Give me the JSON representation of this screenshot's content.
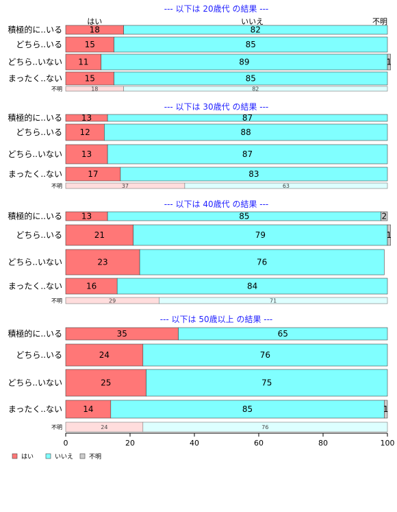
{
  "colors": {
    "yes": "#ff7777",
    "no": "#80ffff",
    "unknown": "#cccccc",
    "yes_light": "#ffdddd",
    "no_light": "#ddffff",
    "title": "#1f1fff"
  },
  "chart_data": {
    "type": "bar",
    "orientation": "horizontal-stacked-100",
    "column_headers": [
      "はい",
      "いいえ",
      "不明"
    ],
    "legend": [
      "はい",
      "いいえ",
      "不明"
    ],
    "x_ticks": [
      "0",
      "20",
      "40",
      "60",
      "80",
      "100"
    ],
    "xlim": [
      0,
      100
    ],
    "panels": [
      {
        "title": "--- 以下は 20歳代 の結果 ---",
        "rows": [
          {
            "label": "積極的に..いる",
            "values": [
              18,
              82,
              0
            ],
            "labels": [
              "18",
              "82",
              ""
            ]
          },
          {
            "label": "どちら..いる",
            "values": [
              15,
              85,
              0
            ],
            "labels": [
              "15",
              "85",
              ""
            ]
          },
          {
            "label": "どちら..いない",
            "values": [
              11,
              89,
              1
            ],
            "labels": [
              "11",
              "89",
              "1"
            ]
          },
          {
            "label": "まったく..ない",
            "values": [
              15,
              85,
              0
            ],
            "labels": [
              "15",
              "85",
              ""
            ]
          }
        ],
        "unknown_row": {
          "label": "不明",
          "values": [
            18,
            82
          ],
          "labels": [
            "18",
            "82"
          ]
        }
      },
      {
        "title": "--- 以下は 30歳代 の結果 ---",
        "rows": [
          {
            "label": "積極的に..いる",
            "values": [
              13,
              87,
              0
            ],
            "labels": [
              "13",
              "87",
              ""
            ]
          },
          {
            "label": "どちら..いる",
            "values": [
              12,
              88,
              0
            ],
            "labels": [
              "12",
              "88",
              ""
            ]
          },
          {
            "label": "どちら..いない",
            "values": [
              13,
              87,
              0
            ],
            "labels": [
              "13",
              "87",
              ""
            ]
          },
          {
            "label": "まったく..ない",
            "values": [
              17,
              83,
              0
            ],
            "labels": [
              "17",
              "83",
              ""
            ]
          }
        ],
        "unknown_row": {
          "label": "不明",
          "values": [
            37,
            63
          ],
          "labels": [
            "37",
            "63"
          ]
        }
      },
      {
        "title": "--- 以下は 40歳代 の結果 ---",
        "rows": [
          {
            "label": "積極的に..いる",
            "values": [
              13,
              85,
              2
            ],
            "labels": [
              "13",
              "85",
              "2"
            ]
          },
          {
            "label": "どちら..いる",
            "values": [
              21,
              79,
              1
            ],
            "labels": [
              "21",
              "79",
              "1"
            ]
          },
          {
            "label": "どちら..いない",
            "values": [
              23,
              76,
              0
            ],
            "labels": [
              "23",
              "76",
              ""
            ]
          },
          {
            "label": "まったく..ない",
            "values": [
              16,
              84,
              0
            ],
            "labels": [
              "16",
              "84",
              ""
            ]
          }
        ],
        "unknown_row": {
          "label": "不明",
          "values": [
            29,
            71
          ],
          "labels": [
            "29",
            "71"
          ]
        }
      },
      {
        "title": "--- 以下は 50歳以上 の結果 ---",
        "rows": [
          {
            "label": "積極的に..いる",
            "values": [
              35,
              65,
              0
            ],
            "labels": [
              "35",
              "65",
              ""
            ]
          },
          {
            "label": "どちら..いる",
            "values": [
              24,
              76,
              0
            ],
            "labels": [
              "24",
              "76",
              ""
            ]
          },
          {
            "label": "どちら..いない",
            "values": [
              25,
              75,
              0
            ],
            "labels": [
              "25",
              "75",
              ""
            ]
          },
          {
            "label": "まったく..ない",
            "values": [
              14,
              85,
              1
            ],
            "labels": [
              "14",
              "85",
              "1"
            ]
          }
        ],
        "unknown_row": {
          "label": "不明",
          "values": [
            24,
            76
          ],
          "labels": [
            "24",
            "76"
          ]
        }
      }
    ]
  }
}
